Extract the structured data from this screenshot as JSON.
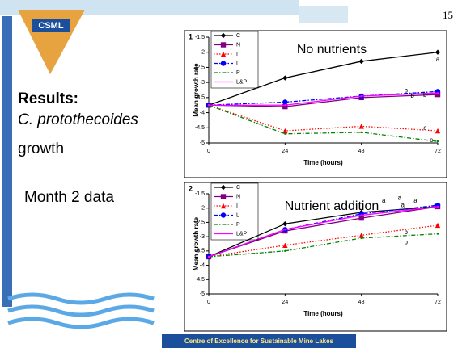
{
  "slide": {
    "logo": "CSML",
    "page_number": "15",
    "heading": "Results:",
    "species": "C. protothecoides",
    "subject": "growth",
    "note": "Month 2 data",
    "footer": "Centre of Excellence for Sustainable Mine Lakes"
  },
  "chart_data": [
    {
      "type": "line",
      "panel": "1",
      "title": "No nutrients",
      "x_label": "Time (hours)",
      "y_label": "Mean growth rate",
      "x": [
        0,
        24,
        48,
        72
      ],
      "xlim": [
        0,
        72
      ],
      "xticks": [
        0,
        24,
        48,
        72
      ],
      "ylim": [
        -5,
        -1.5
      ],
      "yticks": [
        -1.5,
        -2,
        -2.5,
        -3,
        -3.5,
        -4,
        -4.5,
        -5
      ],
      "series": [
        {
          "name": "C",
          "color": "#000000",
          "marker": "diamond",
          "dash": "solid",
          "values": [
            -3.75,
            -2.85,
            -2.3,
            -2
          ]
        },
        {
          "name": "N",
          "color": "#800080",
          "marker": "square",
          "dash": "solid",
          "values": [
            -3.75,
            -3.8,
            -3.5,
            -3.4
          ]
        },
        {
          "name": "I",
          "color": "#ff0000",
          "marker": "triangle",
          "dash": "dotted",
          "values": [
            -3.75,
            -4.6,
            -4.45,
            -4.6
          ]
        },
        {
          "name": "L",
          "color": "#0000ff",
          "marker": "circle",
          "dash": "dashdot",
          "values": [
            -3.75,
            -3.65,
            -3.45,
            -3.3
          ]
        },
        {
          "name": "P",
          "color": "#008000",
          "marker": "none",
          "dash": "dashdot",
          "values": [
            -3.75,
            -4.7,
            -4.65,
            -4.95
          ]
        },
        {
          "name": "L&P",
          "color": "#ff00ff",
          "marker": "none",
          "dash": "solid",
          "values": [
            -3.75,
            -3.75,
            -3.45,
            -3.35
          ]
        }
      ],
      "annotations": [
        {
          "text": "a",
          "x": 72,
          "y": -2.25
        },
        {
          "text": "b",
          "x": 62,
          "y": -3.27
        },
        {
          "text": "b",
          "x": 64,
          "y": -3.45
        },
        {
          "text": "b",
          "x": 68,
          "y": -3.42
        },
        {
          "text": "c",
          "x": 68,
          "y": -4.52
        },
        {
          "text": "c",
          "x": 70,
          "y": -4.92
        }
      ]
    },
    {
      "type": "line",
      "panel": "2",
      "title": "Nutrient addition",
      "x_label": "Time (hours)",
      "y_label": "Mean growth rate",
      "x": [
        0,
        24,
        48,
        72
      ],
      "xlim": [
        0,
        72
      ],
      "xticks": [
        0,
        24,
        48,
        72
      ],
      "ylim": [
        -5,
        -1.5
      ],
      "yticks": [
        -1.5,
        -2,
        -2.5,
        -3,
        -3.5,
        -4,
        -4.5,
        -5
      ],
      "series": [
        {
          "name": "C",
          "color": "#000000",
          "marker": "diamond",
          "dash": "solid",
          "values": [
            -3.7,
            -2.55,
            -2.15,
            -1.95
          ]
        },
        {
          "name": "N",
          "color": "#800080",
          "marker": "square",
          "dash": "solid",
          "values": [
            -3.7,
            -2.8,
            -2.35,
            -1.95
          ]
        },
        {
          "name": "I",
          "color": "#ff0000",
          "marker": "triangle",
          "dash": "dotted",
          "values": [
            -3.7,
            -3.3,
            -2.95,
            -2.6
          ]
        },
        {
          "name": "L",
          "color": "#0000ff",
          "marker": "circle",
          "dash": "dashdot",
          "values": [
            -3.7,
            -2.75,
            -2.2,
            -1.9
          ]
        },
        {
          "name": "P",
          "color": "#008000",
          "marker": "none",
          "dash": "dashdot",
          "values": [
            -3.7,
            -3.5,
            -3.05,
            -2.9
          ]
        },
        {
          "name": "L&P",
          "color": "#ff00ff",
          "marker": "none",
          "dash": "solid",
          "values": [
            -3.7,
            -2.75,
            -2.25,
            -1.95
          ]
        }
      ],
      "annotations": [
        {
          "text": "a",
          "x": 55,
          "y": -1.75
        },
        {
          "text": "a",
          "x": 60,
          "y": -1.65
        },
        {
          "text": "a",
          "x": 65,
          "y": -1.75
        },
        {
          "text": "a",
          "x": 61,
          "y": -1.9
        },
        {
          "text": "b",
          "x": 62,
          "y": -2.85
        },
        {
          "text": "b",
          "x": 62,
          "y": -3.2
        }
      ]
    }
  ]
}
